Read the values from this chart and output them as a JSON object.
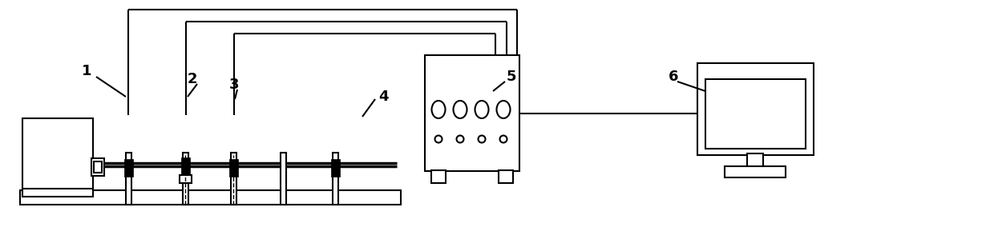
{
  "bg_color": "#ffffff",
  "line_color": "#000000",
  "lw": 1.5,
  "lw_thick": 2.0,
  "figsize": [
    12.4,
    3.14
  ],
  "dpi": 100
}
